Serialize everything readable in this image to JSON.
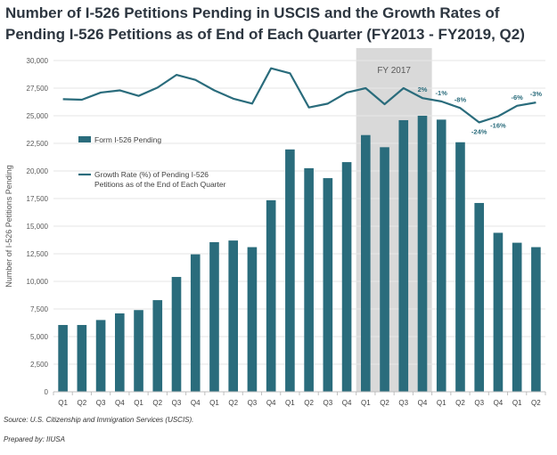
{
  "page": {
    "title": "Number of I-526 Petitions Pending in USCIS and the Growth Rates of Pending I-526 Petitions as of End of Each Quarter (FY2013 - FY2019, Q2)",
    "source": "Source: U.S. Citizenship and Immigration Services (USCIS).",
    "prepared": "Prepared by: IIUSA"
  },
  "chart_data": {
    "type": "bar",
    "title": "Number of I-526 Petitions Pending in USCIS and the Growth Rates of Pending I-526 Petitions as of End of Each Quarter (FY2013 - FY2019, Q2)",
    "xlabel": "",
    "ylabel": "Number of I-526 Petitions Pending",
    "ylim": [
      0,
      30000
    ],
    "yticks": [
      0,
      2500,
      5000,
      7500,
      10000,
      12500,
      15000,
      17500,
      20000,
      22500,
      25000,
      27500,
      30000
    ],
    "ytick_labels": [
      "0",
      "2,500",
      "5,000",
      "7,500",
      "10,000",
      "12,500",
      "15,000",
      "17,500",
      "20,000",
      "22,500",
      "25,000",
      "27,500",
      "30,000"
    ],
    "categories": [
      "Q1",
      "Q2",
      "Q3",
      "Q4",
      "Q1",
      "Q2",
      "Q3",
      "Q4",
      "Q1",
      "Q2",
      "Q3",
      "Q4",
      "Q1",
      "Q2",
      "Q3",
      "Q4",
      "Q1",
      "Q2",
      "Q3",
      "Q4",
      "Q1",
      "Q2",
      "Q3",
      "Q4",
      "Q1",
      "Q2"
    ],
    "highlight": {
      "label": "FY 2017",
      "start_index": 16,
      "end_index": 19
    },
    "series": [
      {
        "name": "Form I-526 Pending",
        "type": "bar",
        "color": "#2a6c7c",
        "values": [
          6050,
          6050,
          6500,
          7100,
          7400,
          8300,
          10400,
          12450,
          13550,
          13700,
          13100,
          17350,
          21950,
          20250,
          19350,
          20800,
          23250,
          22150,
          24600,
          25000,
          24650,
          22600,
          17100,
          14400,
          13500,
          13100
        ]
      },
      {
        "name": "Growth Rate (%) of Pending I-526 Petitions as of the End of Each Quarter",
        "type": "line",
        "color": "#2a6c7c",
        "values": [
          26500,
          26450,
          27100,
          27300,
          26800,
          27550,
          28700,
          28250,
          27300,
          26550,
          26100,
          29300,
          28850,
          25750,
          26100,
          27100,
          27500,
          26050,
          27500,
          26600,
          26300,
          25700,
          24400,
          24950,
          25900,
          26200
        ],
        "point_labels": [
          "",
          "",
          "",
          "",
          "",
          "",
          "",
          "",
          "",
          "",
          "",
          "",
          "",
          "",
          "",
          "",
          "",
          "",
          "",
          "2%",
          "-1%",
          "-8%",
          "-24%",
          "-16%",
          "-6%",
          "-3%"
        ],
        "label_position": [
          "",
          "",
          "",
          "",
          "",
          "",
          "",
          "",
          "",
          "",
          "",
          "",
          "",
          "",
          "",
          "",
          "",
          "",
          "",
          "above",
          "above",
          "above",
          "below",
          "below",
          "above",
          "above"
        ]
      }
    ],
    "legend_position": "upper-left"
  }
}
